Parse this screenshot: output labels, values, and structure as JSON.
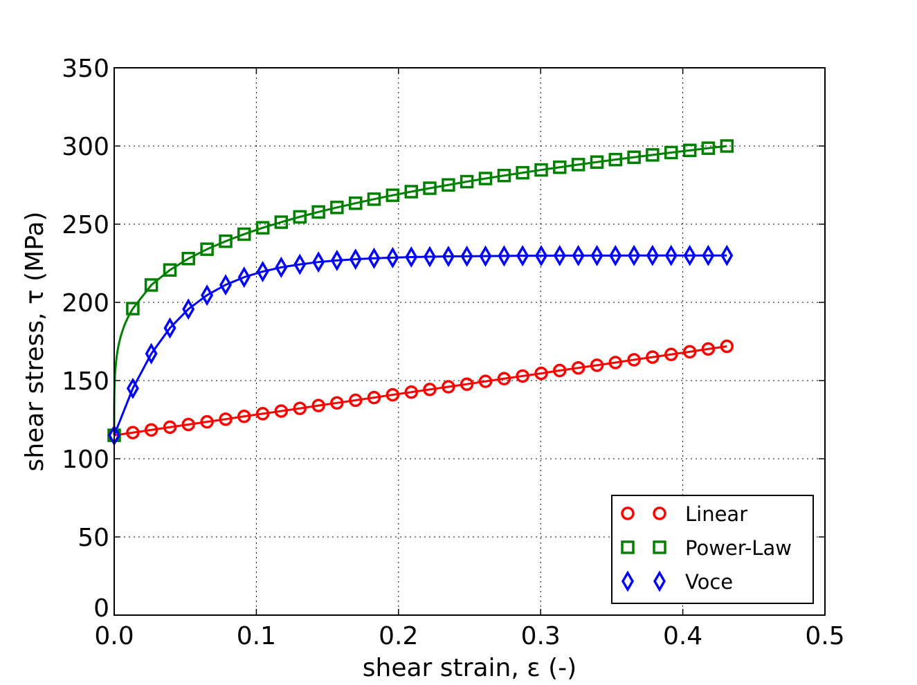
{
  "chart_data": {
    "type": "line",
    "title": "",
    "xlabel": "shear strain, ε (-)",
    "ylabel": "shear stress, τ (MPa)",
    "xlim": [
      0.0,
      0.5
    ],
    "ylim": [
      0,
      350
    ],
    "xticks": [
      0.0,
      0.1,
      0.2,
      0.3,
      0.4,
      0.5
    ],
    "xtick_labels": [
      "0.0",
      "0.1",
      "0.2",
      "0.3",
      "0.4",
      "0.5"
    ],
    "yticks": [
      0,
      50,
      100,
      150,
      200,
      250,
      300,
      350
    ],
    "ytick_labels": [
      "0",
      "50",
      "100",
      "150",
      "200",
      "250",
      "300",
      "350"
    ],
    "grid": true,
    "legend_position": "lower-right",
    "x": [
      0.0,
      0.0131,
      0.0261,
      0.0392,
      0.0522,
      0.0653,
      0.0784,
      0.0914,
      0.1045,
      0.1175,
      0.1306,
      0.1437,
      0.1567,
      0.1698,
      0.1828,
      0.1959,
      0.209,
      0.222,
      0.2351,
      0.2481,
      0.2612,
      0.2743,
      0.2873,
      0.3004,
      0.3134,
      0.3265,
      0.3396,
      0.3526,
      0.3657,
      0.3787,
      0.3918,
      0.4049,
      0.4179,
      0.431
    ],
    "series": [
      {
        "name": "Linear",
        "color": "#ff0000",
        "marker": "circle",
        "values": [
          115.0,
          116.7,
          118.4,
          120.2,
          121.9,
          123.6,
          125.3,
          127.1,
          128.8,
          130.5,
          132.2,
          134.0,
          135.7,
          137.4,
          139.1,
          140.9,
          142.6,
          144.3,
          146.0,
          147.7,
          149.5,
          151.2,
          152.9,
          154.6,
          156.4,
          158.1,
          159.8,
          161.5,
          163.3,
          165.0,
          166.7,
          168.4,
          170.2,
          171.9
        ]
      },
      {
        "name": "Power-Law",
        "color": "#008000",
        "marker": "square",
        "values": [
          115.0,
          196.0,
          211.1,
          220.7,
          228.0,
          234.0,
          239.1,
          243.6,
          247.7,
          251.3,
          254.7,
          257.8,
          260.7,
          263.4,
          266.0,
          268.5,
          270.8,
          273.0,
          275.1,
          277.2,
          279.2,
          281.1,
          282.9,
          284.7,
          286.4,
          288.1,
          289.7,
          291.3,
          292.8,
          294.3,
          295.8,
          297.2,
          298.6,
          300.0
        ]
      },
      {
        "name": "Voce",
        "color": "#0000ff",
        "marker": "diamond",
        "values": [
          115.0,
          145.0,
          167.2,
          183.6,
          195.7,
          204.6,
          211.2,
          216.1,
          219.7,
          222.4,
          224.3,
          225.8,
          226.8,
          227.6,
          228.2,
          228.6,
          229.0,
          229.2,
          229.4,
          229.5,
          229.6,
          229.7,
          229.8,
          229.8,
          229.9,
          229.9,
          229.9,
          229.9,
          230.0,
          230.0,
          230.0,
          230.0,
          230.0,
          230.0
        ]
      }
    ]
  }
}
